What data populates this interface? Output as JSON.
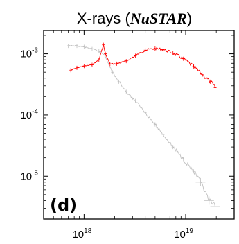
{
  "chart_data": {
    "type": "line",
    "title_prefix": "X-rays (",
    "title_emph": "NuSTAR",
    "title_suffix": ")",
    "panel_label": "(d)",
    "xscale": "log",
    "yscale": "log",
    "xlim": [
      4e+17,
      3e+19
    ],
    "ylim": [
      2e-06,
      0.0024
    ],
    "x_ticks": [
      {
        "value": 1e+18,
        "base": "10",
        "exp": "18"
      },
      {
        "value": 1e+19,
        "base": "10",
        "exp": "19"
      }
    ],
    "y_ticks": [
      {
        "value": 0.001,
        "base": "10",
        "exp": "-3"
      },
      {
        "value": 0.0001,
        "base": "10",
        "exp": "-4"
      },
      {
        "value": 1e-05,
        "base": "10",
        "exp": "-5"
      }
    ],
    "grid": false,
    "legend": "none",
    "series": [
      {
        "color": "#ff0000",
        "x": [
          7.4e+17,
          8.5e+17,
          1e+18,
          1.2e+18,
          1.4e+18,
          1.55e+18,
          1.62e+18,
          1.8e+18,
          2.1e+18,
          2.6e+18,
          3.2e+18,
          4e+18,
          5e+18,
          6e+18,
          7.5e+18,
          9.5e+18,
          1.2e+19,
          1.45e+19,
          1.75e+19,
          1.95e+19
        ],
        "y": [
          0.00054,
          0.00059,
          0.00063,
          0.00066,
          0.0008,
          0.0014,
          0.001,
          0.00068,
          0.00069,
          0.00076,
          0.00093,
          0.00115,
          0.00122,
          0.00118,
          0.00103,
          0.00083,
          0.00062,
          0.00046,
          0.00035,
          0.00028
        ]
      },
      {
        "color": "#c0c0c0",
        "x": [
          7e+17,
          8.5e+17,
          1e+18,
          1.2e+18,
          1.4e+18,
          1.6e+18,
          1.9e+18,
          2.2e+18,
          2.6e+18,
          3.2e+18,
          4e+18,
          5e+18,
          6e+18,
          7.5e+18,
          9.5e+18,
          1.2e+19,
          1.4e+19,
          1.7e+19,
          1.95e+19
        ],
        "y": [
          0.00135,
          0.00135,
          0.0013,
          0.0012,
          0.0011,
          0.00095,
          0.0005,
          0.00035,
          0.00024,
          0.00017,
          0.00011,
          7e-05,
          4.8e-05,
          3e-05,
          1.9e-05,
          1.2e-05,
          8e-06,
          4e-06,
          3.2e-06
        ]
      }
    ]
  }
}
